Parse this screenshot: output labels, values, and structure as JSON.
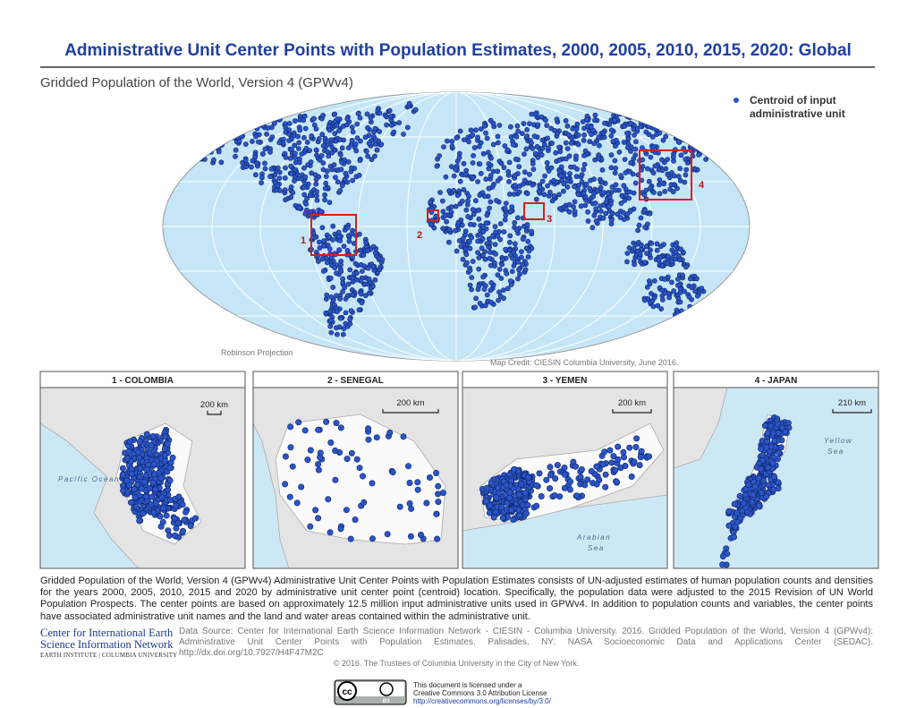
{
  "header": {
    "title": "Administrative Unit Center Points with Population Estimates, 2000, 2005, 2010, 2015, 2020: Global",
    "subtitle": "Gridded Population of the World, Version 4 (GPWv4)"
  },
  "legend": {
    "label": [
      "Centroid of input",
      "administrative unit"
    ]
  },
  "map": {
    "box_labels": [
      "1",
      "2",
      "3",
      "4"
    ],
    "projection": "Robinson Projection",
    "credit": "Map Credit: CIESIN Columbia University, June 2016."
  },
  "insets": [
    {
      "title": "1  -  COLOMBIA",
      "scale": "200 km",
      "labels": [
        "Pacific Ocean"
      ]
    },
    {
      "title": "2  -  SENEGAL",
      "scale": "200 km",
      "labels": []
    },
    {
      "title": "3  -  YEMEN",
      "scale": "200 km",
      "labels": [
        "Arabian",
        "Sea"
      ]
    },
    {
      "title": "4  -  JAPAN",
      "scale": "210 km",
      "labels": [
        "Yellow",
        "Sea"
      ]
    }
  ],
  "description": "Gridded Population of the World, Version 4 (GPWv4) Administrative Unit Center Points with Population Estimates consists of UN-adjusted estimates of human population counts and densities for the years 2000, 2005, 2010, 2015 and 2020 by administrative unit center point (centroid) location. Specifically, the population data were adjusted to the 2015 Revision of UN World Population Prospects. The center points are based on approximately 12.5 million input administrative units used in GPWv4. In addition to population counts and variables, the center points have associated administrative unit names and the land and water areas contained within the administrative unit.",
  "footer": {
    "logo": [
      "Center for International Earth",
      "Science Information Network",
      "EARTH INSTITUTE | COLUMBIA UNIVERSITY"
    ],
    "source": "Data Source: Center for International Earth Science Information Network - CIESIN - Columbia University. 2016. Gridded Population of the World, Version 4 (GPWv4): Administrative Unit Center Points with Population Estimates. Palisades, NY: NASA Socioeconomic Data and Applications Center (SEDAC). http://dx.doi.org/10.7927/H4F47M2C",
    "copyright": "© 2016. The Trustees of Columbia University in the City of New York.",
    "license": [
      "This document is licensed under a",
      "Creative Commons 3.0 Attribution License",
      "http://creativecommons.org/licenses/by/3.0/"
    ],
    "cc_badge": [
      "cc",
      "BY"
    ]
  }
}
